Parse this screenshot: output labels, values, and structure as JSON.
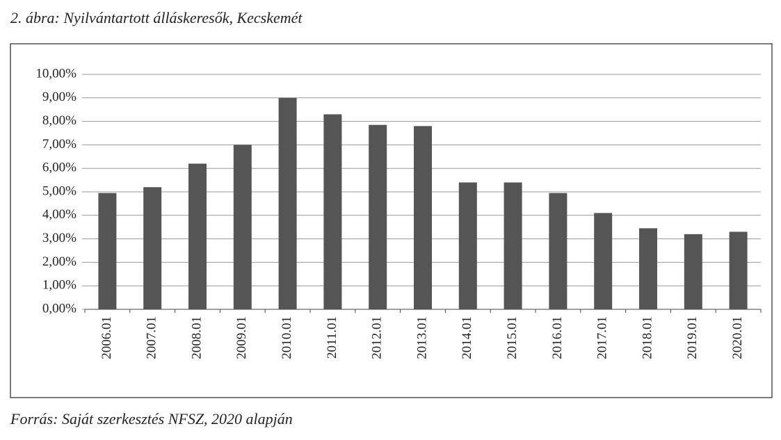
{
  "chart_data": {
    "type": "bar",
    "title": "2. ábra: Nyilvántartott álláskeresők, Kecskemét",
    "source": "Forrás: Saját szerkesztés NFSZ, 2020 alapján",
    "categories": [
      "2006.01",
      "2007.01",
      "2008.01",
      "2009.01",
      "2010.01",
      "2011.01",
      "2012.01",
      "2013.01",
      "2014.01",
      "2015.01",
      "2016.01",
      "2017.01",
      "2018.01",
      "2019.01",
      "2020.01"
    ],
    "values": [
      4.95,
      5.2,
      6.2,
      7.0,
      9.0,
      8.3,
      7.85,
      7.8,
      5.4,
      5.4,
      4.95,
      4.1,
      3.45,
      3.2,
      3.3
    ],
    "color": "#555555",
    "ylim": [
      0,
      10
    ],
    "yticks": [
      {
        "value": 0,
        "label": "0,00%"
      },
      {
        "value": 1,
        "label": "1,00%"
      },
      {
        "value": 2,
        "label": "2,00%"
      },
      {
        "value": 3,
        "label": "3,00%"
      },
      {
        "value": 4,
        "label": "4,00%"
      },
      {
        "value": 5,
        "label": "5,00%"
      },
      {
        "value": 6,
        "label": "6,00%"
      },
      {
        "value": 7,
        "label": "7,00%"
      },
      {
        "value": 8,
        "label": "8,00%"
      },
      {
        "value": 9,
        "label": "9,00%"
      },
      {
        "value": 10,
        "label": "10,00%"
      }
    ],
    "grid": true
  }
}
